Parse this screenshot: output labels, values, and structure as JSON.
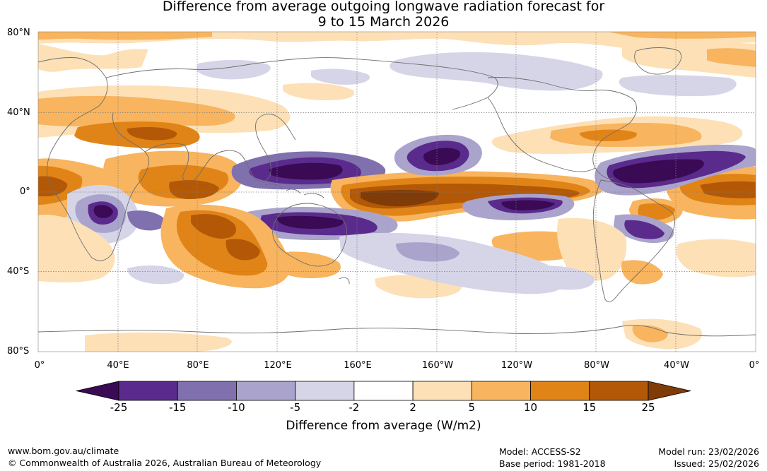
{
  "title": {
    "line1": "Difference from average outgoing longwave radiation forecast for",
    "line2": "9 to 15 March 2026"
  },
  "map": {
    "lat_labels": [
      "80°N",
      "40°N",
      "0°",
      "40°S",
      "80°S"
    ],
    "lon_labels": [
      "0°",
      "40°E",
      "80°E",
      "120°E",
      "160°E",
      "160°W",
      "120°W",
      "80°W",
      "40°W",
      "0°"
    ]
  },
  "colorbar": {
    "ticks": [
      "-25",
      "-15",
      "-10",
      "-5",
      "-2",
      "2",
      "5",
      "10",
      "15",
      "25"
    ],
    "colors": [
      "#3a0a54",
      "#5a2b8c",
      "#8070ad",
      "#aaa3cc",
      "#d6d5e8",
      "#ffffff",
      "#fde0b6",
      "#f8b45e",
      "#e08418",
      "#b35806",
      "#7f3b08"
    ],
    "label": "Difference from average (W/m2)"
  },
  "footer": {
    "website": "www.bom.gov.au/climate",
    "copyright": "© Commonwealth of Australia 2026, Australian Bureau of Meteorology",
    "model": "Model: ACCESS-S2",
    "base_period": "Base period: 1981-2018",
    "model_run": "Model run: 23/02/2026",
    "issued": "Issued: 25/02/2026"
  }
}
